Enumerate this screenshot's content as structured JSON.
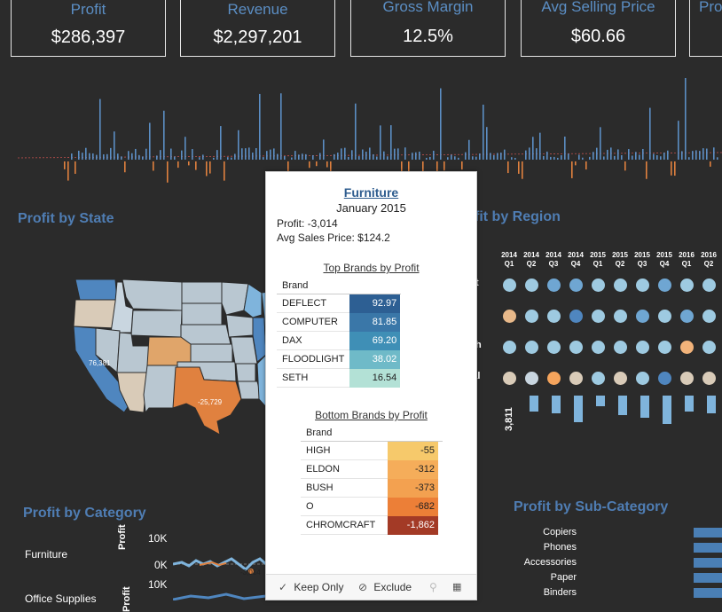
{
  "kpis": [
    {
      "label": "Profit",
      "value": "$286,397"
    },
    {
      "label": "Revenue",
      "value": "$2,297,201"
    },
    {
      "label": "Gross Margin",
      "value": "12.5%"
    },
    {
      "label": "Avg Selling Price",
      "value": "$60.66"
    },
    {
      "label": "Pro",
      "value": ""
    }
  ],
  "sections": {
    "profit_by_state": "Profit by State",
    "profit_by_region": "fit by Region",
    "profit_by_category": "Profit by Category",
    "profit_by_subcategory": "Profit by Sub-Category"
  },
  "map": {
    "label_ca": "76,381",
    "label_tx": "-25,729"
  },
  "region": {
    "quarters": [
      {
        "year": "2014",
        "q": "Q1"
      },
      {
        "year": "2014",
        "q": "Q2"
      },
      {
        "year": "2014",
        "q": "Q3"
      },
      {
        "year": "2014",
        "q": "Q4"
      },
      {
        "year": "2015",
        "q": "Q1"
      },
      {
        "year": "2015",
        "q": "Q2"
      },
      {
        "year": "2015",
        "q": "Q3"
      },
      {
        "year": "2015",
        "q": "Q4"
      },
      {
        "year": "2016",
        "q": "Q1"
      },
      {
        "year": "2016",
        "q": "Q2"
      }
    ],
    "row_fragments": [
      "t",
      "",
      "h",
      "ral"
    ],
    "axis_value": "3,811",
    "dot_colors": [
      [
        "#9ecae1",
        "#9ecae1",
        "#6fa6d2",
        "#6fa6d2",
        "#9ecae1",
        "#9ecae1",
        "#9ecae1",
        "#6fa6d2",
        "#9ecae1",
        "#9ecae1"
      ],
      [
        "#e8b98a",
        "#9ecae1",
        "#9ecae1",
        "#4f86bf",
        "#9ecae1",
        "#9ecae1",
        "#6fa6d2",
        "#9ecae1",
        "#6fa6d2",
        "#9ecae1"
      ],
      [
        "#9ecae1",
        "#9ecae1",
        "#9ecae1",
        "#9ecae1",
        "#9ecae1",
        "#9ecae1",
        "#9ecae1",
        "#9ecae1",
        "#f2b37a",
        "#9ecae1"
      ],
      [
        "#d9cbb8",
        "#c9d6e0",
        "#f5a45c",
        "#d9cbb8",
        "#9ecae1",
        "#d9cbb8",
        "#9ecae1",
        "#4f86bf",
        "#d9cbb8",
        "#d9cbb8"
      ]
    ]
  },
  "category": {
    "rows": [
      "Furniture",
      "Office Supplies"
    ],
    "axis_title": "Profit",
    "ticks": [
      "10K",
      "0K",
      "10K"
    ],
    "marker": "-3,014"
  },
  "subcategory": [
    "Copiers",
    "Phones",
    "Accessories",
    "Paper",
    "Binders"
  ],
  "tooltip": {
    "category": "Furniture",
    "date": "January 2015",
    "profit_line": "Profit: -3,014",
    "asp_line": "Avg Sales Price: $124.2",
    "top_title": "Top Brands by Profit",
    "bottom_title": "Bottom Brands by Profit",
    "brand_header": "Brand",
    "top_brands": [
      {
        "name": "DEFLECT",
        "value": "92.97",
        "color": "#2d5f93",
        "fg": "#ffffff"
      },
      {
        "name": "COMPUTER",
        "value": "81.85",
        "color": "#3a77a8",
        "fg": "#ffffff"
      },
      {
        "name": "DAX",
        "value": "69.20",
        "color": "#3f8fb6",
        "fg": "#ffffff"
      },
      {
        "name": "FLOODLIGHT",
        "value": "38.02",
        "color": "#6fbac8",
        "fg": "#ffffff"
      },
      {
        "name": "SETH",
        "value": "16.54",
        "color": "#b3e1d6",
        "fg": "#222222"
      }
    ],
    "bottom_brands": [
      {
        "name": "HIGH",
        "value": "-55",
        "color": "#f6c96b",
        "fg": "#222222"
      },
      {
        "name": "ELDON",
        "value": "-312",
        "color": "#f5ad5a",
        "fg": "#222222"
      },
      {
        "name": "BUSH",
        "value": "-373",
        "color": "#f3a150",
        "fg": "#222222"
      },
      {
        "name": "O",
        "value": "-682",
        "color": "#ec7f37",
        "fg": "#222222"
      },
      {
        "name": "CHROMCRAFT",
        "value": "-1,862",
        "color": "#a33a26",
        "fg": "#ffffff"
      }
    ],
    "keep_only": "Keep Only",
    "exclude": "Exclude"
  }
}
